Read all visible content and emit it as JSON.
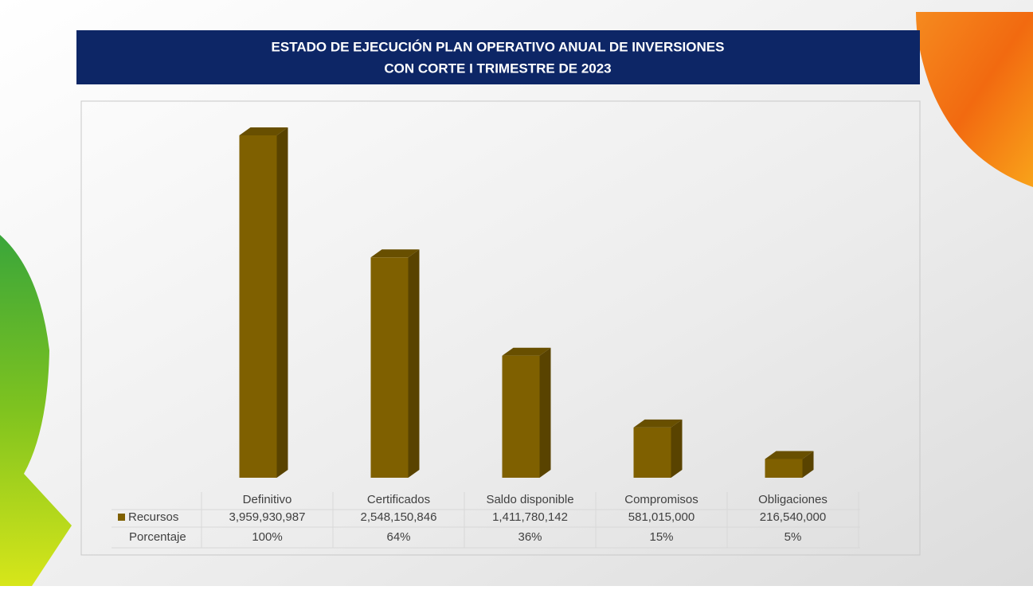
{
  "chart_data": {
    "type": "bar3d",
    "title": [
      "ESTADO DE EJECUCIÓN PLAN OPERATIVO ANUAL DE INVERSIONES",
      "CON CORTE I TRIMESTRE DE 2023"
    ],
    "categories": [
      "Definitivo",
      "Certificados",
      "Saldo disponible",
      "Compromisos",
      "Obligaciones"
    ],
    "series": [
      {
        "name": "Recursos",
        "color": "#7f6000",
        "values": [
          3959930987,
          2548150846,
          1411780142,
          581015000,
          216540000
        ],
        "value_labels": [
          "3,959,930,987",
          "2,548,150,846",
          "1,411,780,142",
          "581,015,000",
          "216,540,000"
        ]
      }
    ],
    "table_row": {
      "name": "Porcentaje",
      "values": [
        100,
        64,
        36,
        15,
        5
      ],
      "value_labels": [
        "100%",
        "64%",
        "36%",
        "15%",
        "5%"
      ]
    }
  }
}
